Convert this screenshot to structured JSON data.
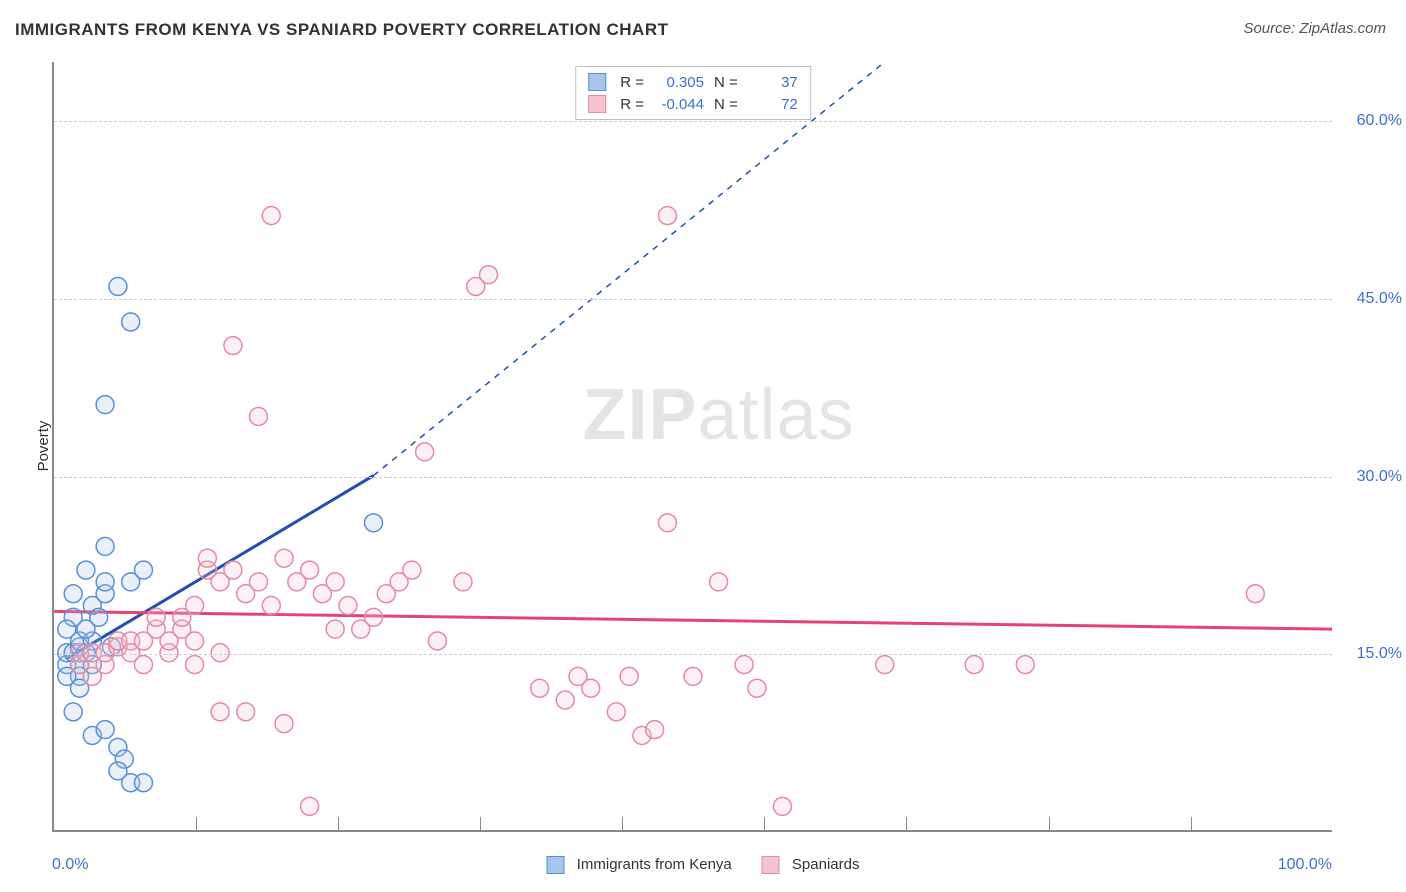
{
  "title": "IMMIGRANTS FROM KENYA VS SPANIARD POVERTY CORRELATION CHART",
  "source_label": "Source: ZipAtlas.com",
  "ylabel": "Poverty",
  "watermark_bold": "ZIP",
  "watermark_light": "atlas",
  "chart": {
    "type": "scatter",
    "xlim": [
      0,
      100
    ],
    "ylim": [
      0,
      65
    ],
    "x_tick_labels": [
      "0.0%",
      "100.0%"
    ],
    "y_tick_values": [
      15,
      30,
      45,
      60
    ],
    "y_tick_labels": [
      "15.0%",
      "30.0%",
      "45.0%",
      "60.0%"
    ],
    "x_minor_ticks": [
      11.1,
      22.2,
      33.3,
      44.4,
      55.5,
      66.6,
      77.7,
      88.8
    ],
    "grid_color": "#cccccc",
    "axis_color": "#888888",
    "label_color": "#3b6fd6",
    "background_color": "#ffffff",
    "marker_radius": 9,
    "marker_stroke_width": 1.5,
    "marker_fill_opacity": 0.25,
    "trend_solid_width": 3,
    "trend_dash_width": 1.5,
    "trend_dash_pattern": "6,6"
  },
  "series": [
    {
      "id": "kenya",
      "label": "Immigrants from Kenya",
      "color_stroke": "#5a8fd6",
      "color_fill": "#a8c5eb",
      "R": "0.305",
      "N": "37",
      "trend_color": "#1f4fb0",
      "trend_solid": {
        "x1": 1,
        "y1": 14.5,
        "x2": 25,
        "y2": 30
      },
      "trend_dash": {
        "x1": 25,
        "y1": 30,
        "x2": 65,
        "y2": 65
      },
      "points": [
        [
          1,
          14
        ],
        [
          1,
          15
        ],
        [
          1.5,
          15
        ],
        [
          2,
          14
        ],
        [
          2,
          15.5
        ],
        [
          2,
          13
        ],
        [
          1.5,
          18
        ],
        [
          1,
          17
        ],
        [
          2.5,
          15
        ],
        [
          2,
          16
        ],
        [
          3,
          19
        ],
        [
          3.5,
          18
        ],
        [
          4,
          20
        ],
        [
          4,
          21
        ],
        [
          3,
          14
        ],
        [
          2,
          12
        ],
        [
          1.5,
          10
        ],
        [
          3,
          8
        ],
        [
          4,
          8.5
        ],
        [
          5,
          7
        ],
        [
          5.5,
          6
        ],
        [
          6,
          4
        ],
        [
          7,
          4
        ],
        [
          5,
          5
        ],
        [
          5,
          46
        ],
        [
          6,
          43
        ],
        [
          4,
          36
        ],
        [
          4,
          24
        ],
        [
          2.5,
          22
        ],
        [
          1.5,
          20
        ],
        [
          6,
          21
        ],
        [
          7,
          22
        ],
        [
          4.5,
          15.5
        ],
        [
          3,
          16
        ],
        [
          2.5,
          17
        ],
        [
          1,
          13
        ],
        [
          25,
          26
        ]
      ]
    },
    {
      "id": "spaniards",
      "label": "Spaniards",
      "color_stroke": "#e38aa5",
      "color_fill": "#f5c2d0",
      "R": "-0.044",
      "N": "72",
      "trend_color": "#e6427a",
      "trend_solid": {
        "x1": 0,
        "y1": 18.5,
        "x2": 100,
        "y2": 17
      },
      "trend_dash": null,
      "points": [
        [
          2,
          14
        ],
        [
          2,
          15
        ],
        [
          3,
          15
        ],
        [
          3,
          13
        ],
        [
          4,
          14
        ],
        [
          4,
          15
        ],
        [
          5,
          15.5
        ],
        [
          5,
          16
        ],
        [
          6,
          16
        ],
        [
          6,
          15
        ],
        [
          7,
          14
        ],
        [
          7,
          16
        ],
        [
          8,
          17
        ],
        [
          8,
          18
        ],
        [
          9,
          15
        ],
        [
          9,
          16
        ],
        [
          10,
          17
        ],
        [
          10,
          18
        ],
        [
          11,
          19
        ],
        [
          11,
          16
        ],
        [
          12,
          22
        ],
        [
          12,
          23
        ],
        [
          13,
          21
        ],
        [
          14,
          22
        ],
        [
          15,
          20
        ],
        [
          16,
          21
        ],
        [
          17,
          19
        ],
        [
          18,
          23
        ],
        [
          19,
          21
        ],
        [
          20,
          22
        ],
        [
          21,
          20
        ],
        [
          22,
          21
        ],
        [
          23,
          19
        ],
        [
          24,
          17
        ],
        [
          25,
          18
        ],
        [
          26,
          20
        ],
        [
          27,
          21
        ],
        [
          28,
          22
        ],
        [
          13,
          10
        ],
        [
          15,
          10
        ],
        [
          18,
          9
        ],
        [
          20,
          2
        ],
        [
          22,
          17
        ],
        [
          30,
          16
        ],
        [
          29,
          32
        ],
        [
          32,
          21
        ],
        [
          33,
          46
        ],
        [
          34,
          47
        ],
        [
          38,
          12
        ],
        [
          40,
          11
        ],
        [
          41,
          13
        ],
        [
          42,
          12
        ],
        [
          44,
          10
        ],
        [
          45,
          13
        ],
        [
          46,
          8
        ],
        [
          47,
          8.5
        ],
        [
          48,
          26
        ],
        [
          50,
          13
        ],
        [
          52,
          21
        ],
        [
          54,
          14
        ],
        [
          55,
          12
        ],
        [
          57,
          2
        ],
        [
          48,
          52
        ],
        [
          14,
          41
        ],
        [
          16,
          35
        ],
        [
          17,
          52
        ],
        [
          65,
          14
        ],
        [
          72,
          14
        ],
        [
          76,
          14
        ],
        [
          94,
          20
        ],
        [
          13,
          15
        ],
        [
          11,
          14
        ]
      ]
    }
  ],
  "stats_labels": {
    "R": "R =",
    "N": "N ="
  },
  "legend_bottom": [
    {
      "series": 0
    },
    {
      "series": 1
    }
  ]
}
